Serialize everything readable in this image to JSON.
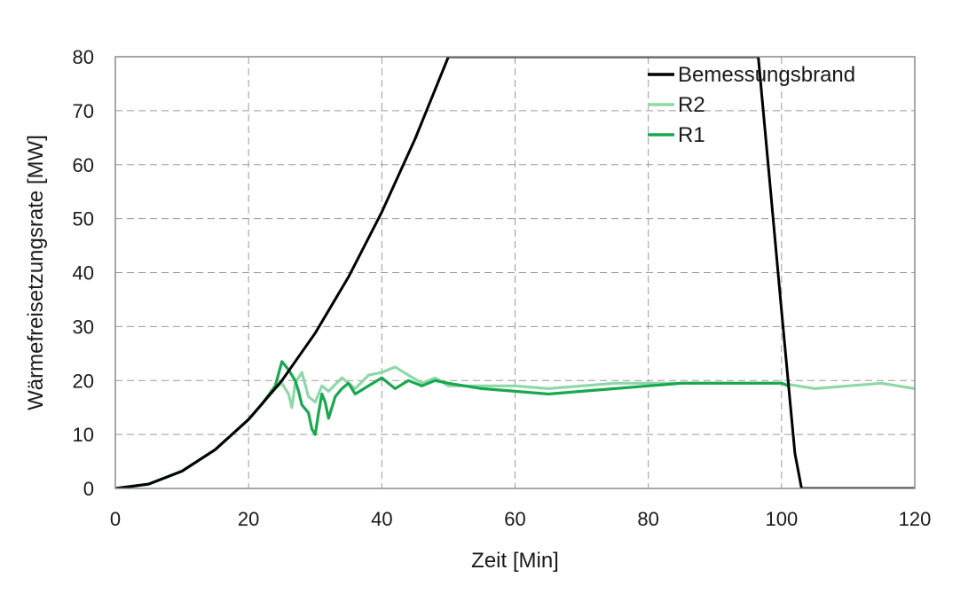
{
  "chart_data": {
    "type": "line",
    "xlabel": "Zeit [Min]",
    "ylabel": "Wärmefreisetzungsrate [MW]",
    "xlim": [
      0,
      120
    ],
    "ylim": [
      0,
      80
    ],
    "x_ticks": [
      "0",
      "20",
      "40",
      "60",
      "80",
      "100",
      "120"
    ],
    "y_ticks": [
      "0",
      "10",
      "20",
      "30",
      "40",
      "50",
      "60",
      "70",
      "80"
    ],
    "grid": true,
    "legend_position": "top-right",
    "series": [
      {
        "name": "Bemessungsbrand",
        "color": "#000000",
        "points": [
          [
            0,
            0
          ],
          [
            5,
            0.8
          ],
          [
            10,
            3.2
          ],
          [
            15,
            7.2
          ],
          [
            20,
            12.8
          ],
          [
            25,
            20.0
          ],
          [
            30,
            28.8
          ],
          [
            35,
            39.2
          ],
          [
            40,
            51.2
          ],
          [
            45,
            64.8
          ],
          [
            50,
            80.0
          ],
          [
            96.5,
            80.0
          ],
          [
            98,
            60.0
          ],
          [
            100,
            33.0
          ],
          [
            102,
            6.5
          ],
          [
            103,
            0
          ],
          [
            120,
            0
          ]
        ]
      },
      {
        "name": "R2",
        "color": "#8fd8a8",
        "points": [
          [
            0,
            0
          ],
          [
            5,
            0.8
          ],
          [
            10,
            3.2
          ],
          [
            15,
            7.2
          ],
          [
            20,
            12.8
          ],
          [
            22,
            15.6
          ],
          [
            24,
            18.5
          ],
          [
            25,
            19.5
          ],
          [
            26,
            17.5
          ],
          [
            26.5,
            15.0
          ],
          [
            27,
            19.5
          ],
          [
            28,
            21.5
          ],
          [
            29,
            17.0
          ],
          [
            30,
            16.0
          ],
          [
            31,
            19.0
          ],
          [
            32,
            18.0
          ],
          [
            34,
            20.5
          ],
          [
            36,
            18.5
          ],
          [
            38,
            21.0
          ],
          [
            40,
            21.5
          ],
          [
            42,
            22.5
          ],
          [
            44,
            21.0
          ],
          [
            46,
            19.5
          ],
          [
            48,
            20.5
          ],
          [
            50,
            19.0
          ],
          [
            55,
            19.0
          ],
          [
            60,
            19.0
          ],
          [
            65,
            18.5
          ],
          [
            70,
            19.0
          ],
          [
            75,
            19.5
          ],
          [
            80,
            19.5
          ],
          [
            85,
            19.5
          ],
          [
            90,
            19.5
          ],
          [
            95,
            19.5
          ],
          [
            100,
            19.5
          ],
          [
            105,
            18.5
          ],
          [
            110,
            19.0
          ],
          [
            115,
            19.5
          ],
          [
            120,
            18.5
          ]
        ]
      },
      {
        "name": "R1",
        "color": "#18a84e",
        "points": [
          [
            0,
            0
          ],
          [
            5,
            0.8
          ],
          [
            10,
            3.2
          ],
          [
            15,
            7.2
          ],
          [
            20,
            12.8
          ],
          [
            22,
            15.6
          ],
          [
            24,
            19.0
          ],
          [
            25,
            23.5
          ],
          [
            26,
            22.0
          ],
          [
            27,
            20.0
          ],
          [
            27.5,
            18.0
          ],
          [
            28,
            15.5
          ],
          [
            29,
            14.0
          ],
          [
            29.5,
            11.0
          ],
          [
            30,
            10.0
          ],
          [
            30.5,
            14.0
          ],
          [
            31,
            17.5
          ],
          [
            31.5,
            16.0
          ],
          [
            32,
            13.0
          ],
          [
            33,
            17.0
          ],
          [
            34,
            18.5
          ],
          [
            35,
            19.5
          ],
          [
            36,
            17.5
          ],
          [
            38,
            19.0
          ],
          [
            40,
            20.5
          ],
          [
            42,
            18.5
          ],
          [
            44,
            20.0
          ],
          [
            46,
            19.0
          ],
          [
            48,
            20.0
          ],
          [
            50,
            19.5
          ],
          [
            55,
            18.5
          ],
          [
            60,
            18.0
          ],
          [
            65,
            17.5
          ],
          [
            70,
            18.0
          ],
          [
            75,
            18.5
          ],
          [
            80,
            19.0
          ],
          [
            85,
            19.5
          ],
          [
            90,
            19.5
          ],
          [
            95,
            19.5
          ],
          [
            100,
            19.5
          ],
          [
            101,
            19.0
          ]
        ]
      }
    ]
  }
}
